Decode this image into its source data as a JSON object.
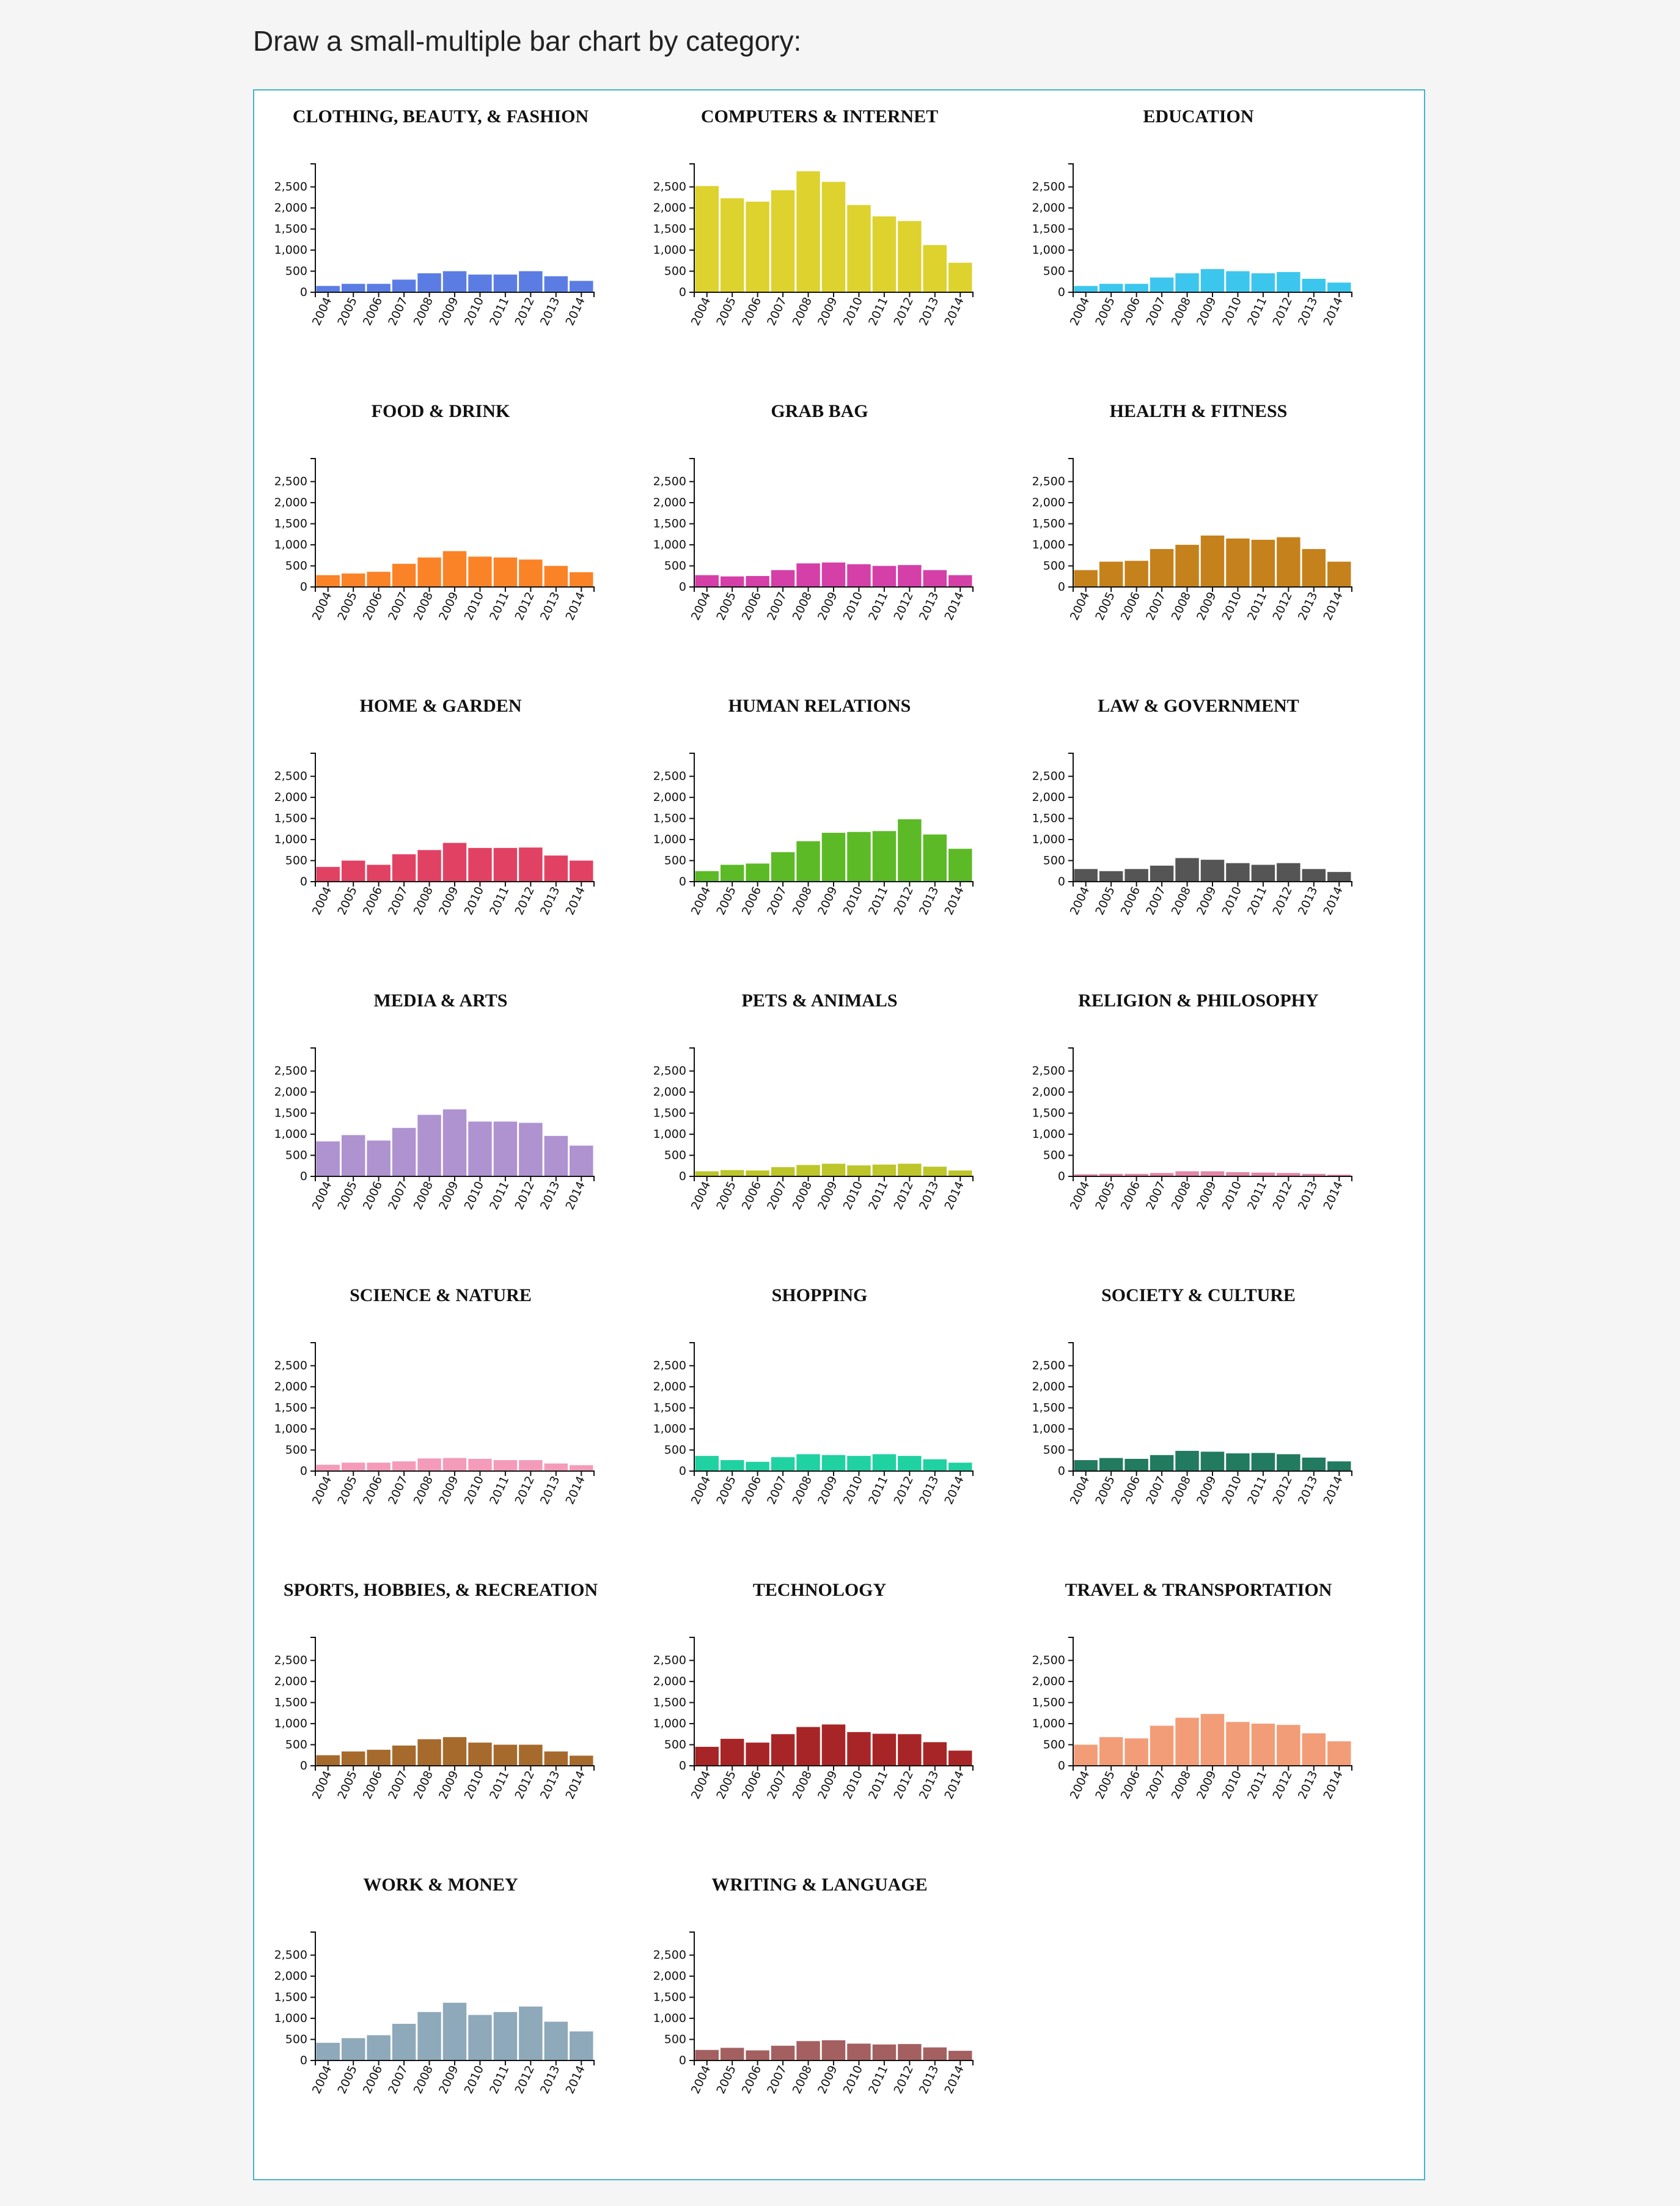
{
  "heading": "Draw a small-multiple bar chart by category:",
  "chart_data": {
    "type": "bar",
    "layout": "small-multiples",
    "columns": 3,
    "categories": [
      "2004",
      "2005",
      "2006",
      "2007",
      "2008",
      "2009",
      "2010",
      "2011",
      "2012",
      "2013",
      "2014"
    ],
    "ylim": [
      0,
      2800
    ],
    "yticks": [
      0,
      500,
      1000,
      1500,
      2000,
      2500
    ],
    "ytick_labels": [
      "0",
      "500",
      "1,000",
      "1,500",
      "2,000",
      "2,500"
    ],
    "grid": false,
    "panels": [
      {
        "title": "CLOTHING, BEAUTY, & FASHION",
        "color": "#5b7de3",
        "values": [
          150,
          200,
          200,
          300,
          450,
          500,
          420,
          420,
          500,
          380,
          270
        ]
      },
      {
        "title": "COMPUTERS & INTERNET",
        "color": "#ddd22e",
        "values": [
          2520,
          2230,
          2150,
          2420,
          2870,
          2620,
          2070,
          1800,
          1690,
          1120,
          700
        ]
      },
      {
        "title": "EDUCATION",
        "color": "#3cc6ee",
        "values": [
          150,
          200,
          200,
          350,
          450,
          550,
          500,
          450,
          480,
          320,
          230
        ]
      },
      {
        "title": "FOOD & DRINK",
        "color": "#fb8327",
        "values": [
          280,
          320,
          360,
          550,
          700,
          850,
          720,
          700,
          650,
          500,
          350
        ]
      },
      {
        "title": "GRAB BAG",
        "color": "#d53fa8",
        "values": [
          280,
          250,
          260,
          400,
          560,
          580,
          540,
          500,
          520,
          400,
          280
        ]
      },
      {
        "title": "HEALTH & FITNESS",
        "color": "#c5811b",
        "values": [
          400,
          600,
          620,
          900,
          1000,
          1220,
          1150,
          1120,
          1180,
          900,
          600
        ]
      },
      {
        "title": "HOME & GARDEN",
        "color": "#e14263",
        "values": [
          350,
          500,
          400,
          650,
          750,
          920,
          800,
          800,
          810,
          620,
          500
        ]
      },
      {
        "title": "HUMAN RELATIONS",
        "color": "#5cba26",
        "values": [
          250,
          400,
          430,
          700,
          960,
          1160,
          1180,
          1200,
          1480,
          1120,
          780
        ]
      },
      {
        "title": "LAW & GOVERNMENT",
        "color": "#555555",
        "values": [
          300,
          250,
          300,
          380,
          560,
          520,
          440,
          400,
          440,
          300,
          230
        ]
      },
      {
        "title": "MEDIA & ARTS",
        "color": "#af92d0",
        "values": [
          830,
          980,
          850,
          1150,
          1460,
          1590,
          1300,
          1300,
          1270,
          960,
          730
        ]
      },
      {
        "title": "PETS & ANIMALS",
        "color": "#bdc52a",
        "values": [
          120,
          150,
          140,
          220,
          270,
          300,
          260,
          280,
          300,
          230,
          140
        ]
      },
      {
        "title": "RELIGION & PHILOSOPHY",
        "color": "#e385a6",
        "values": [
          50,
          60,
          60,
          80,
          120,
          120,
          100,
          90,
          80,
          60,
          40
        ]
      },
      {
        "title": "SCIENCE & NATURE",
        "color": "#f49bb9",
        "values": [
          150,
          200,
          200,
          230,
          300,
          310,
          290,
          260,
          260,
          180,
          140
        ]
      },
      {
        "title": "SHOPPING",
        "color": "#20d1a1",
        "values": [
          360,
          260,
          220,
          330,
          400,
          380,
          360,
          400,
          360,
          280,
          200
        ]
      },
      {
        "title": "SOCIETY & CULTURE",
        "color": "#227a5f",
        "values": [
          260,
          310,
          290,
          380,
          480,
          460,
          420,
          430,
          400,
          320,
          230
        ]
      },
      {
        "title": "SPORTS, HOBBIES, & RECREATION",
        "color": "#a56a2c",
        "values": [
          250,
          340,
          380,
          480,
          630,
          680,
          550,
          500,
          500,
          340,
          240
        ]
      },
      {
        "title": "TECHNOLOGY",
        "color": "#a82527",
        "values": [
          450,
          640,
          550,
          750,
          920,
          980,
          800,
          760,
          750,
          560,
          360
        ]
      },
      {
        "title": "TRAVEL & TRANSPORTATION",
        "color": "#f29d77",
        "values": [
          500,
          680,
          650,
          950,
          1140,
          1230,
          1040,
          1000,
          970,
          770,
          580
        ]
      },
      {
        "title": "WORK & MONEY",
        "color": "#8ea9b9",
        "values": [
          420,
          530,
          600,
          870,
          1150,
          1370,
          1080,
          1150,
          1280,
          920,
          690
        ]
      },
      {
        "title": "WRITING & LANGUAGE",
        "color": "#a46060",
        "values": [
          250,
          300,
          240,
          350,
          460,
          480,
          400,
          380,
          390,
          310,
          230
        ]
      }
    ]
  }
}
